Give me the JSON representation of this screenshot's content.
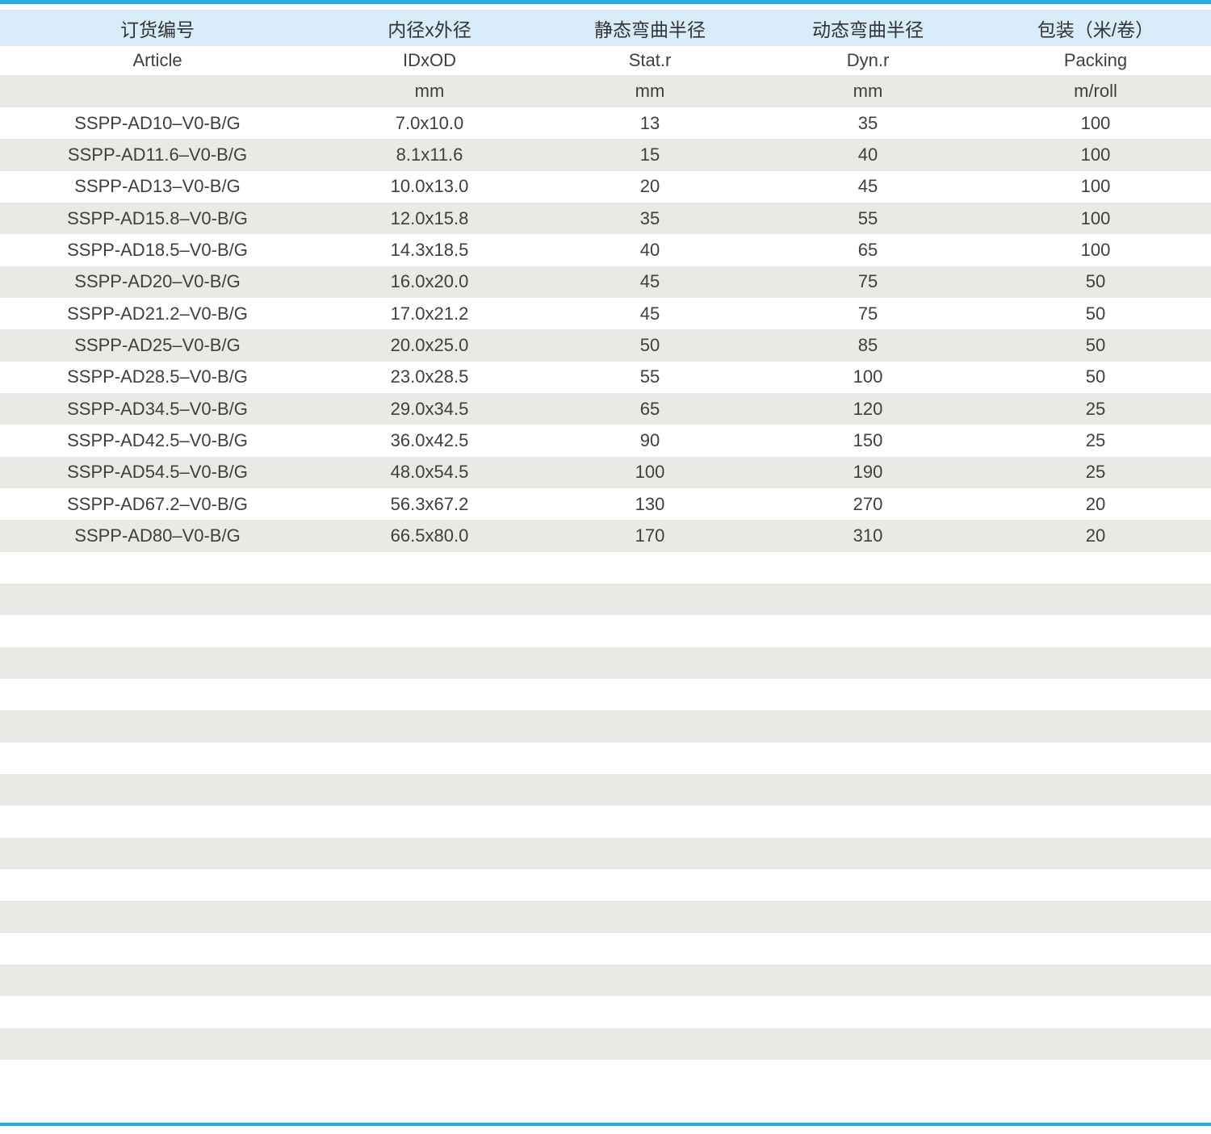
{
  "colors": {
    "accent_rule": "#29abe2",
    "header_bg": "#d9ecf9",
    "stripe_bg": "#e9e9e5",
    "text": "#3f3f3f"
  },
  "table": {
    "headers": {
      "cn": [
        "订货编号",
        "内径x外径",
        "静态弯曲半径",
        "动态弯曲半径",
        "包装（米/卷）"
      ],
      "en": [
        "Article",
        "IDxOD",
        "Stat.r",
        "Dyn.r",
        "Packing"
      ],
      "units": [
        "",
        "mm",
        "mm",
        "mm",
        "m/roll"
      ]
    },
    "rows": [
      [
        "SSPP-AD10–V0-B/G",
        "7.0x10.0",
        "13",
        "35",
        "100"
      ],
      [
        "SSPP-AD11.6–V0-B/G",
        "8.1x11.6",
        "15",
        "40",
        "100"
      ],
      [
        "SSPP-AD13–V0-B/G",
        "10.0x13.0",
        "20",
        "45",
        "100"
      ],
      [
        "SSPP-AD15.8–V0-B/G",
        "12.0x15.8",
        "35",
        "55",
        "100"
      ],
      [
        "SSPP-AD18.5–V0-B/G",
        "14.3x18.5",
        "40",
        "65",
        "100"
      ],
      [
        "SSPP-AD20–V0-B/G",
        "16.0x20.0",
        "45",
        "75",
        "50"
      ],
      [
        "SSPP-AD21.2–V0-B/G",
        "17.0x21.2",
        "45",
        "75",
        "50"
      ],
      [
        "SSPP-AD25–V0-B/G",
        "20.0x25.0",
        "50",
        "85",
        "50"
      ],
      [
        "SSPP-AD28.5–V0-B/G",
        "23.0x28.5",
        "55",
        "100",
        "50"
      ],
      [
        "SSPP-AD34.5–V0-B/G",
        "29.0x34.5",
        "65",
        "120",
        "25"
      ],
      [
        "SSPP-AD42.5–V0-B/G",
        "36.0x42.5",
        "90",
        "150",
        "25"
      ],
      [
        "SSPP-AD54.5–V0-B/G",
        "48.0x54.5",
        "100",
        "190",
        "25"
      ],
      [
        "SSPP-AD67.2–V0-B/G",
        "56.3x67.2",
        "130",
        "270",
        "20"
      ],
      [
        "SSPP-AD80–V0-B/G",
        "66.5x80.0",
        "170",
        "310",
        "20"
      ]
    ],
    "empty_row_count": 16
  }
}
